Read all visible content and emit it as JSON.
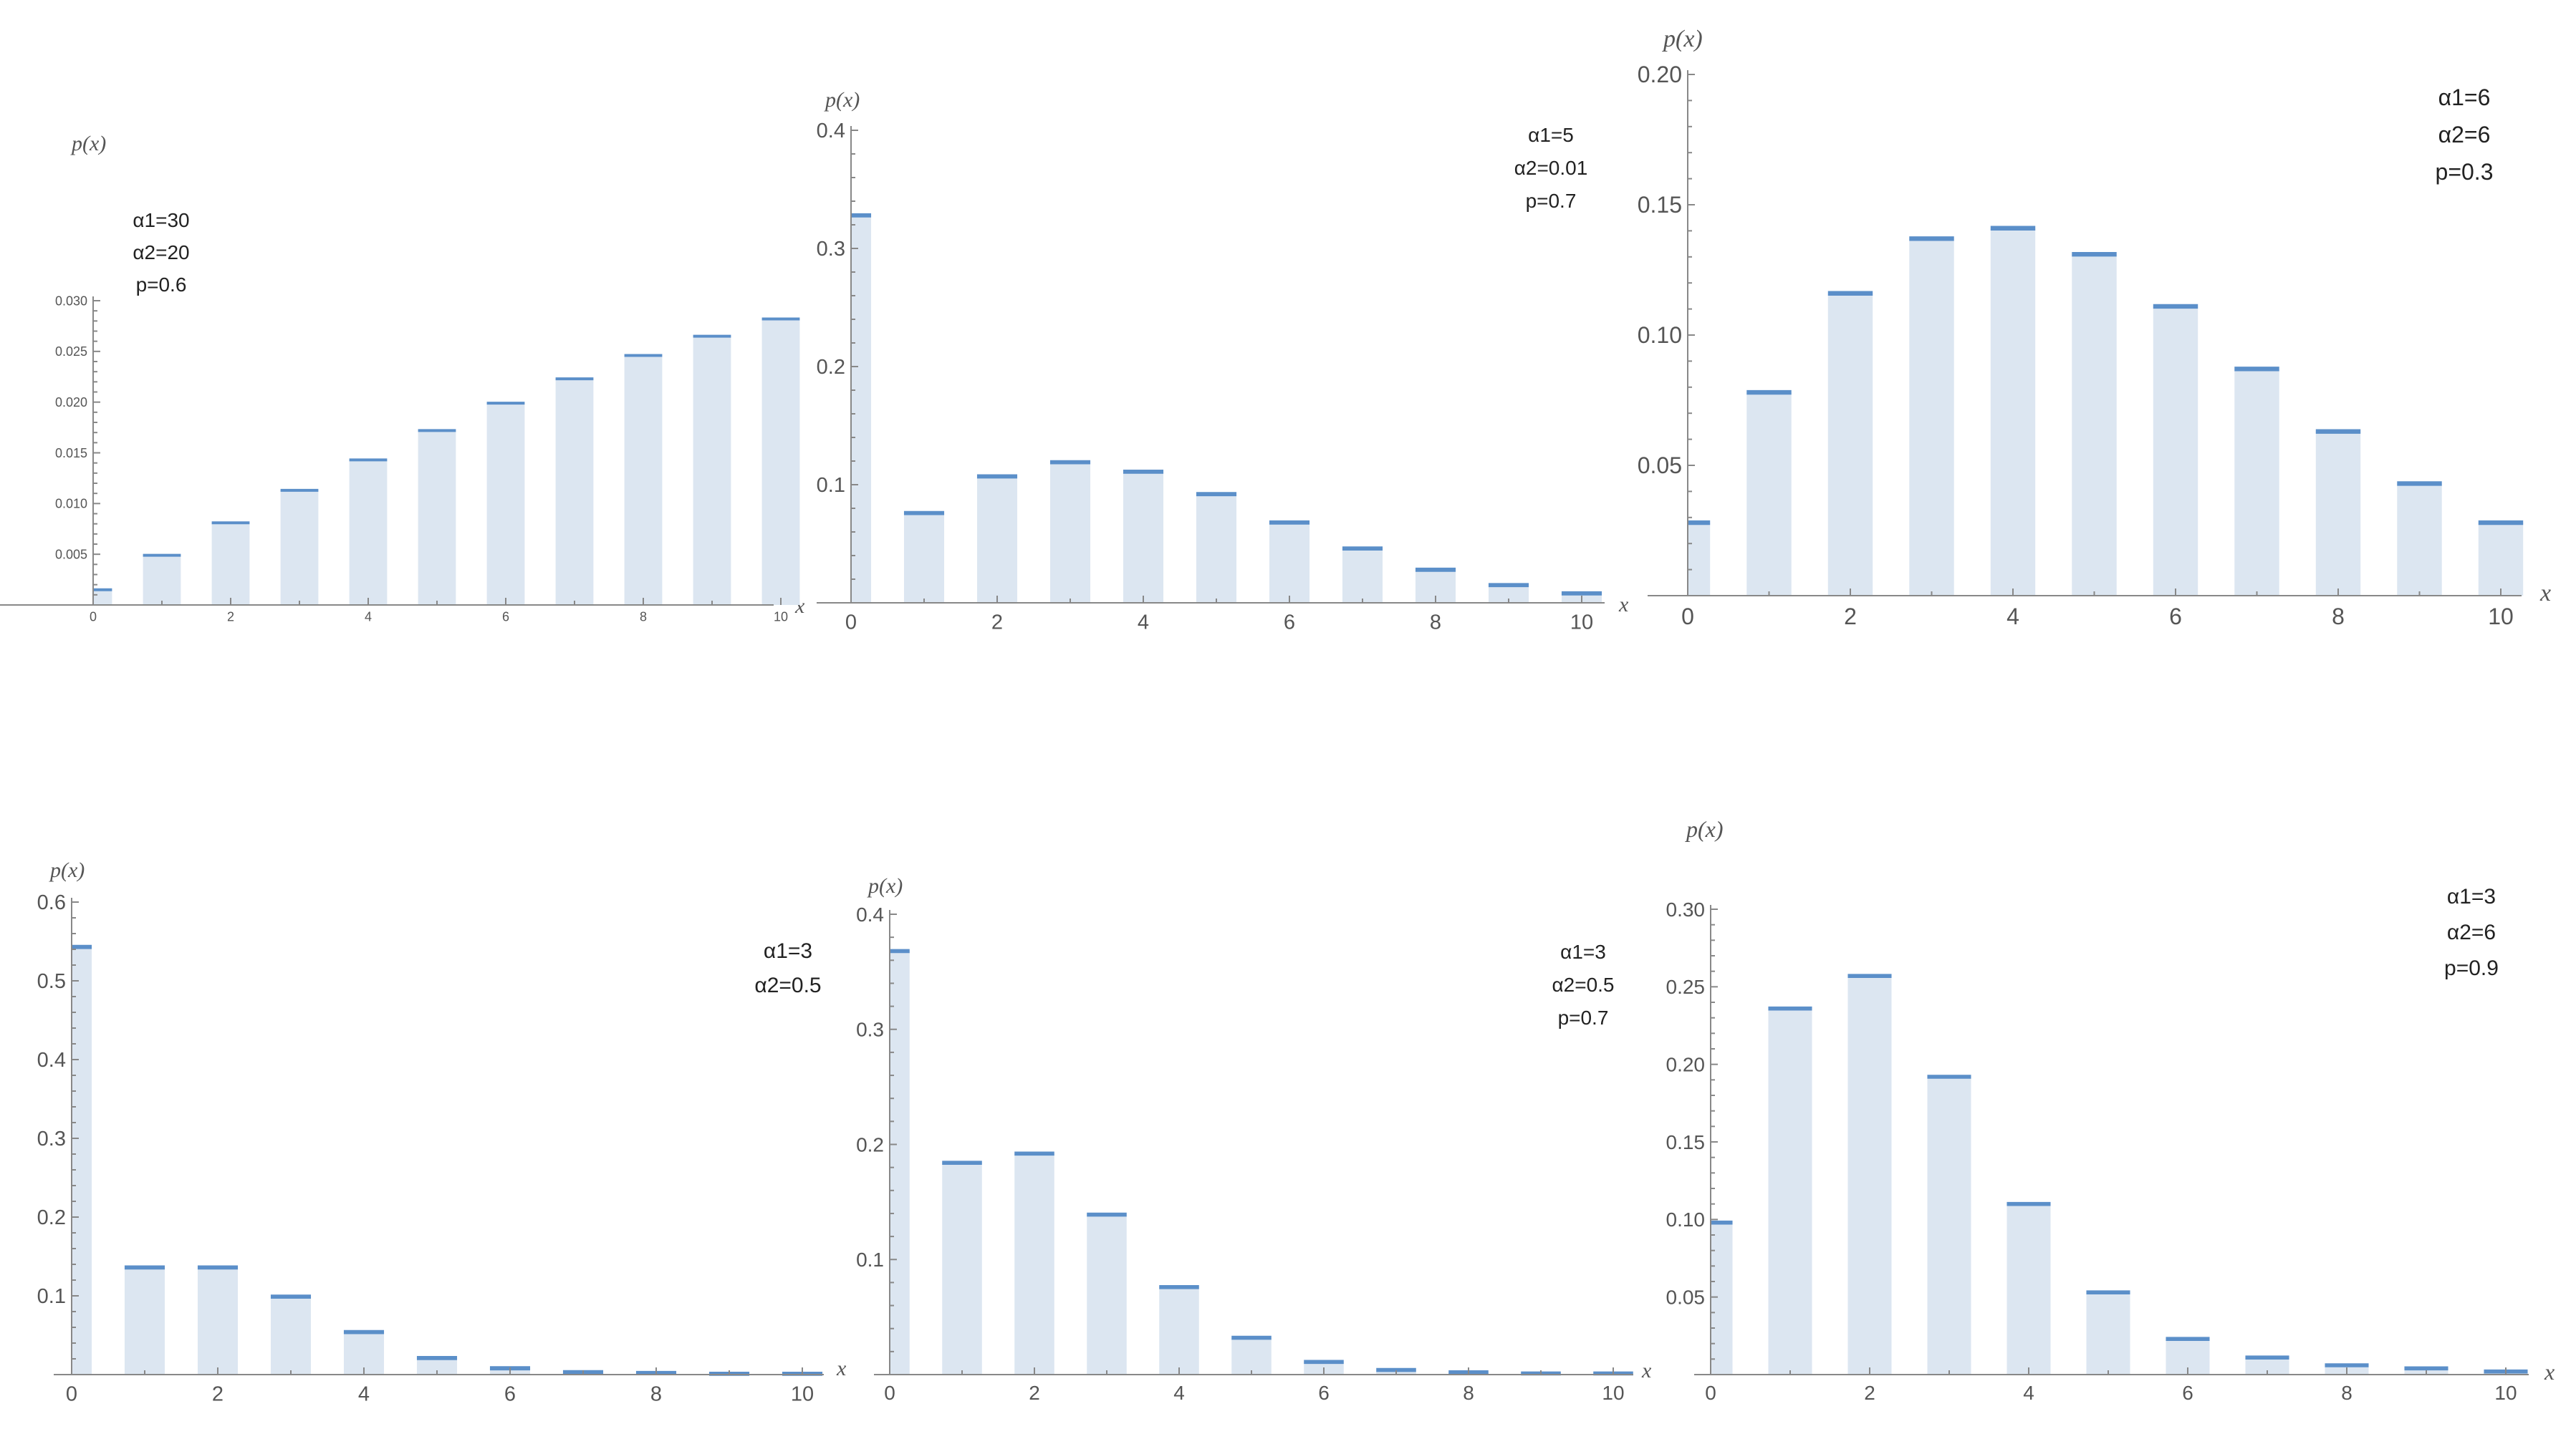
{
  "chart_data": [
    {
      "type": "bar",
      "xlabel": "x",
      "ylabel": "p(x)",
      "x": [
        0,
        1,
        2,
        3,
        4,
        5,
        6,
        7,
        8,
        9,
        10
      ],
      "values": [
        0.0015,
        0.0049,
        0.0081,
        0.0113,
        0.0143,
        0.0172,
        0.0199,
        0.0223,
        0.0246,
        0.0265,
        0.0282
      ],
      "ylim": [
        0,
        0.03
      ],
      "yticks": [
        "0.005",
        "0.010",
        "0.015",
        "0.020",
        "0.025",
        "0.030"
      ],
      "xticks": [
        "0",
        "2",
        "4",
        "6",
        "8",
        "10"
      ],
      "params": [
        "α1=30",
        "α2=20",
        "p=0.6"
      ],
      "params_position": "top-left",
      "colors": {
        "bar_fill": "#dce6f1",
        "bar_cap": "#5b8fc9",
        "axis": "#888888"
      }
    },
    {
      "type": "bar",
      "xlabel": "x",
      "ylabel": "p(x)",
      "x": [
        0,
        1,
        2,
        3,
        4,
        5,
        6,
        7,
        8,
        9,
        10
      ],
      "values": [
        0.328,
        0.076,
        0.107,
        0.119,
        0.111,
        0.092,
        0.068,
        0.046,
        0.028,
        0.015,
        0.008
      ],
      "ylim": [
        0,
        0.4
      ],
      "yticks": [
        "0.1",
        "0.2",
        "0.3",
        "0.4"
      ],
      "xticks": [
        "0",
        "2",
        "4",
        "6",
        "8",
        "10"
      ],
      "params": [
        "α1=5",
        "α2=0.01",
        "p=0.7"
      ],
      "params_position": "top-right",
      "colors": {
        "bar_fill": "#dce6f1",
        "bar_cap": "#5b8fc9",
        "axis": "#888888"
      }
    },
    {
      "type": "bar",
      "xlabel": "x",
      "ylabel": "p(x)",
      "x": [
        0,
        1,
        2,
        3,
        4,
        5,
        6,
        7,
        8,
        9,
        10
      ],
      "values": [
        0.028,
        0.078,
        0.116,
        0.137,
        0.141,
        0.131,
        0.111,
        0.087,
        0.063,
        0.043,
        0.028
      ],
      "ylim": [
        0,
        0.2
      ],
      "yticks": [
        "0.05",
        "0.10",
        "0.15",
        "0.20"
      ],
      "xticks": [
        "0",
        "2",
        "4",
        "6",
        "8",
        "10"
      ],
      "params": [
        "α1=6",
        "α2=6",
        "p=0.3"
      ],
      "params_position": "top-right",
      "colors": {
        "bar_fill": "#dce6f1",
        "bar_cap": "#5b8fc9",
        "axis": "#888888"
      }
    },
    {
      "type": "bar",
      "xlabel": "x",
      "ylabel": "p(x)",
      "x": [
        0,
        1,
        2,
        3,
        4,
        5,
        6,
        7,
        8,
        9,
        10
      ],
      "values": [
        0.543,
        0.136,
        0.136,
        0.099,
        0.054,
        0.021,
        0.008,
        0.003,
        0.002,
        0.001,
        0.001
      ],
      "ylim": [
        0,
        0.6
      ],
      "yticks": [
        "0.1",
        "0.2",
        "0.3",
        "0.4",
        "0.5",
        "0.6"
      ],
      "xticks": [
        "0",
        "2",
        "4",
        "6",
        "8",
        "10"
      ],
      "params": [
        "α1=3",
        "α2=0.5"
      ],
      "params_position": "top-right",
      "colors": {
        "bar_fill": "#dce6f1",
        "bar_cap": "#5b8fc9",
        "axis": "#888888"
      }
    },
    {
      "type": "bar",
      "xlabel": "x",
      "ylabel": "p(x)",
      "x": [
        0,
        1,
        2,
        3,
        4,
        5,
        6,
        7,
        8,
        9,
        10
      ],
      "values": [
        0.368,
        0.184,
        0.192,
        0.139,
        0.076,
        0.032,
        0.011,
        0.004,
        0.002,
        0.001,
        0.001
      ],
      "ylim": [
        0,
        0.4
      ],
      "yticks": [
        "0.1",
        "0.2",
        "0.3",
        "0.4"
      ],
      "xticks": [
        "0",
        "2",
        "4",
        "6",
        "8",
        "10"
      ],
      "params": [
        "α1=3",
        "α2=0.5",
        "p=0.7"
      ],
      "params_position": "top-right",
      "colors": {
        "bar_fill": "#dce6f1",
        "bar_cap": "#5b8fc9",
        "axis": "#888888"
      }
    },
    {
      "type": "bar",
      "xlabel": "x",
      "ylabel": "p(x)",
      "x": [
        0,
        1,
        2,
        3,
        4,
        5,
        6,
        7,
        8,
        9,
        10
      ],
      "values": [
        0.098,
        0.236,
        0.257,
        0.192,
        0.11,
        0.053,
        0.023,
        0.011,
        0.006,
        0.004,
        0.002
      ],
      "ylim": [
        0,
        0.3
      ],
      "yticks": [
        "0.05",
        "0.10",
        "0.15",
        "0.20",
        "0.25",
        "0.30"
      ],
      "xticks": [
        "0",
        "2",
        "4",
        "6",
        "8",
        "10"
      ],
      "params": [
        "α1=3",
        "α2=6",
        "p=0.9"
      ],
      "params_position": "top-right",
      "colors": {
        "bar_fill": "#dce6f1",
        "bar_cap": "#5b8fc9",
        "axis": "#888888"
      }
    }
  ]
}
